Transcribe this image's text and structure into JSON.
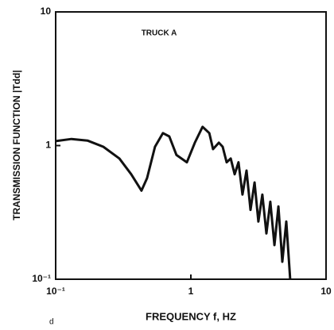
{
  "chart_data": {
    "type": "line",
    "title": "TRUCK A",
    "xlabel": "FREQUENCY f, HZ",
    "ylabel": "TRANSMISSION FUNCTION |Tdd|",
    "note": "d",
    "x": [
      0.1,
      0.131,
      0.172,
      0.225,
      0.296,
      0.362,
      0.431,
      0.474,
      0.543,
      0.622,
      0.693,
      0.783,
      0.935,
      1.07,
      1.22,
      1.37,
      1.46,
      1.61,
      1.72,
      1.84,
      1.97,
      2.11,
      2.25,
      2.41,
      2.58,
      2.76,
      2.96,
      3.16,
      3.38,
      3.62,
      3.87,
      4.15,
      4.44,
      4.75,
      5.08,
      5.43
    ],
    "series": [
      {
        "color": "#111111",
        "values": [
          1.08,
          1.12,
          1.09,
          0.98,
          0.8,
          0.61,
          0.46,
          0.57,
          0.98,
          1.24,
          1.17,
          0.85,
          0.75,
          1.05,
          1.38,
          1.24,
          0.94,
          1.05,
          0.98,
          0.75,
          0.8,
          0.61,
          0.75,
          0.43,
          0.65,
          0.33,
          0.53,
          0.27,
          0.43,
          0.22,
          0.38,
          0.18,
          0.35,
          0.135,
          0.27,
          0.1
        ]
      }
    ],
    "xlim": [
      0.1,
      10
    ],
    "ylim": [
      0.1,
      10
    ],
    "xscale": "log",
    "yscale": "log",
    "xticks": [
      {
        "value": 0.1,
        "label": "10⁻¹"
      },
      1,
      10
    ],
    "yticks": [
      {
        "value": 0.1,
        "label": "10⁻¹"
      },
      1,
      10
    ]
  }
}
